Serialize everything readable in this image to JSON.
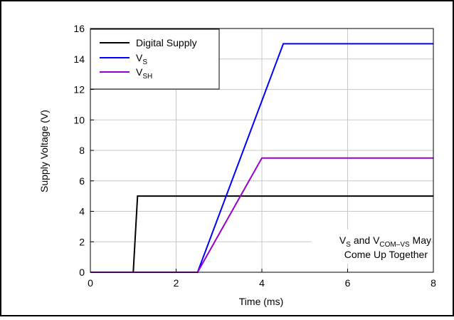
{
  "chart_data": {
    "type": "line",
    "xlabel": "Time (ms)",
    "ylabel": "Supply Voltage (V)",
    "xlim": [
      0,
      8
    ],
    "ylim": [
      0,
      16
    ],
    "xticks": [
      0,
      2,
      4,
      6,
      8
    ],
    "yticks": [
      0,
      2,
      4,
      6,
      8,
      10,
      12,
      14,
      16
    ],
    "grid": true,
    "legend_position": "top-left",
    "series": [
      {
        "name": "Digital Supply",
        "color": "#000000",
        "points": [
          [
            0,
            0
          ],
          [
            1.0,
            0
          ],
          [
            1.1,
            5
          ],
          [
            8,
            5
          ]
        ]
      },
      {
        "name": "V_S",
        "color": "#0000ff",
        "points": [
          [
            0,
            0
          ],
          [
            2.5,
            0
          ],
          [
            4.5,
            15
          ],
          [
            8,
            15
          ]
        ]
      },
      {
        "name": "V_SH",
        "color": "#9900cc",
        "points": [
          [
            0,
            0
          ],
          [
            2.5,
            0
          ],
          [
            4.0,
            7.5
          ],
          [
            8,
            7.5
          ]
        ]
      }
    ],
    "annotation": {
      "line1_pre": "V",
      "line1_sub1": "S",
      "line1_mid": " and V",
      "line1_sub2": "COM–VS",
      "line1_post": " May",
      "line2": "Come Up Together"
    },
    "legend_labels": {
      "digital": "Digital Supply",
      "vs_main": "V",
      "vs_sub": "S",
      "vsh_main": "V",
      "vsh_sub": "SH"
    }
  }
}
